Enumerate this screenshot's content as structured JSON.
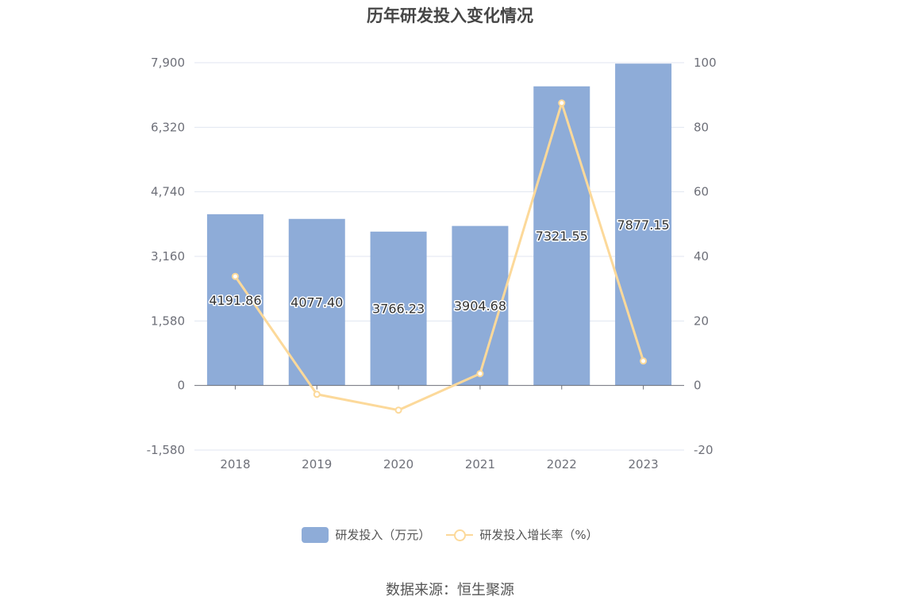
{
  "chart_data": {
    "type": "bar",
    "title": "历年研发投入变化情况",
    "categories": [
      "2018",
      "2019",
      "2020",
      "2021",
      "2022",
      "2023"
    ],
    "series": [
      {
        "name": "研发投入（万元）",
        "type": "bar",
        "axis": "left",
        "values": [
          4191.86,
          4077.4,
          3766.23,
          3904.68,
          7321.55,
          7877.15
        ],
        "labels": [
          "4191.86",
          "4077.40",
          "3766.23",
          "3904.68",
          "7321.55",
          "7877.15"
        ],
        "color": "#8eacd8"
      },
      {
        "name": "研发投入增长率（%）",
        "type": "line",
        "axis": "right",
        "values": [
          33.8,
          -2.73,
          -7.63,
          3.68,
          87.51,
          7.59
        ],
        "color": "#fcd99a"
      }
    ],
    "y_left": {
      "range": [
        -1580,
        7900
      ],
      "ticks": [
        "-1,580",
        "0",
        "1,580",
        "3,160",
        "4,740",
        "6,320",
        "7,900"
      ]
    },
    "y_right": {
      "range": [
        -20,
        100
      ],
      "ticks": [
        "-20",
        "0",
        "20",
        "40",
        "60",
        "80",
        "100"
      ]
    },
    "grid": true,
    "legend_position": "bottom",
    "source": "数据来源：恒生聚源"
  }
}
